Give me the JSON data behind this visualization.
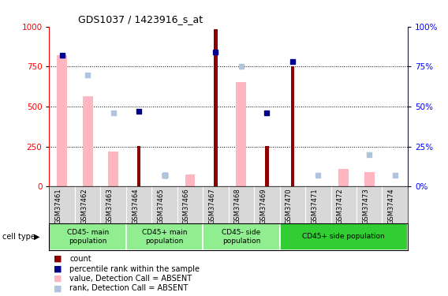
{
  "title": "GDS1037 / 1423916_s_at",
  "samples": [
    "GSM37461",
    "GSM37462",
    "GSM37463",
    "GSM37464",
    "GSM37465",
    "GSM37466",
    "GSM37467",
    "GSM37468",
    "GSM37469",
    "GSM37470",
    "GSM37471",
    "GSM37472",
    "GSM37473",
    "GSM37474"
  ],
  "count_values": [
    null,
    null,
    null,
    255,
    null,
    null,
    985,
    null,
    255,
    750,
    null,
    null,
    null,
    null
  ],
  "percentile_rank": [
    82,
    null,
    null,
    47,
    7,
    null,
    84,
    null,
    46,
    78,
    null,
    null,
    null,
    null
  ],
  "value_absent": [
    820,
    565,
    220,
    null,
    null,
    75,
    null,
    655,
    null,
    null,
    null,
    110,
    90,
    null
  ],
  "rank_absent": [
    null,
    70,
    46,
    null,
    7,
    null,
    null,
    75,
    null,
    null,
    7,
    null,
    20,
    7
  ],
  "cell_type_groups": [
    {
      "label": "CD45- main\npopulation",
      "start": 0,
      "end": 3,
      "color": "#90ee90"
    },
    {
      "label": "CD45+ main\npopulation",
      "start": 3,
      "end": 6,
      "color": "#90ee90"
    },
    {
      "label": "CD45- side\npopulation",
      "start": 6,
      "end": 9,
      "color": "#90ee90"
    },
    {
      "label": "CD45+ side population",
      "start": 9,
      "end": 14,
      "color": "#32cd32"
    }
  ],
  "ylim_left": [
    0,
    1000
  ],
  "ylim_right": [
    0,
    100
  ],
  "yticks_left": [
    0,
    250,
    500,
    750,
    1000
  ],
  "yticks_right": [
    0,
    25,
    50,
    75,
    100
  ],
  "count_color": "#8b0000",
  "percentile_color": "#00008b",
  "value_absent_color": "#ffb6c1",
  "rank_absent_color": "#b0c4de",
  "group_colors": [
    "#90ee90",
    "#90ee90",
    "#90ee90",
    "#32cd32"
  ]
}
